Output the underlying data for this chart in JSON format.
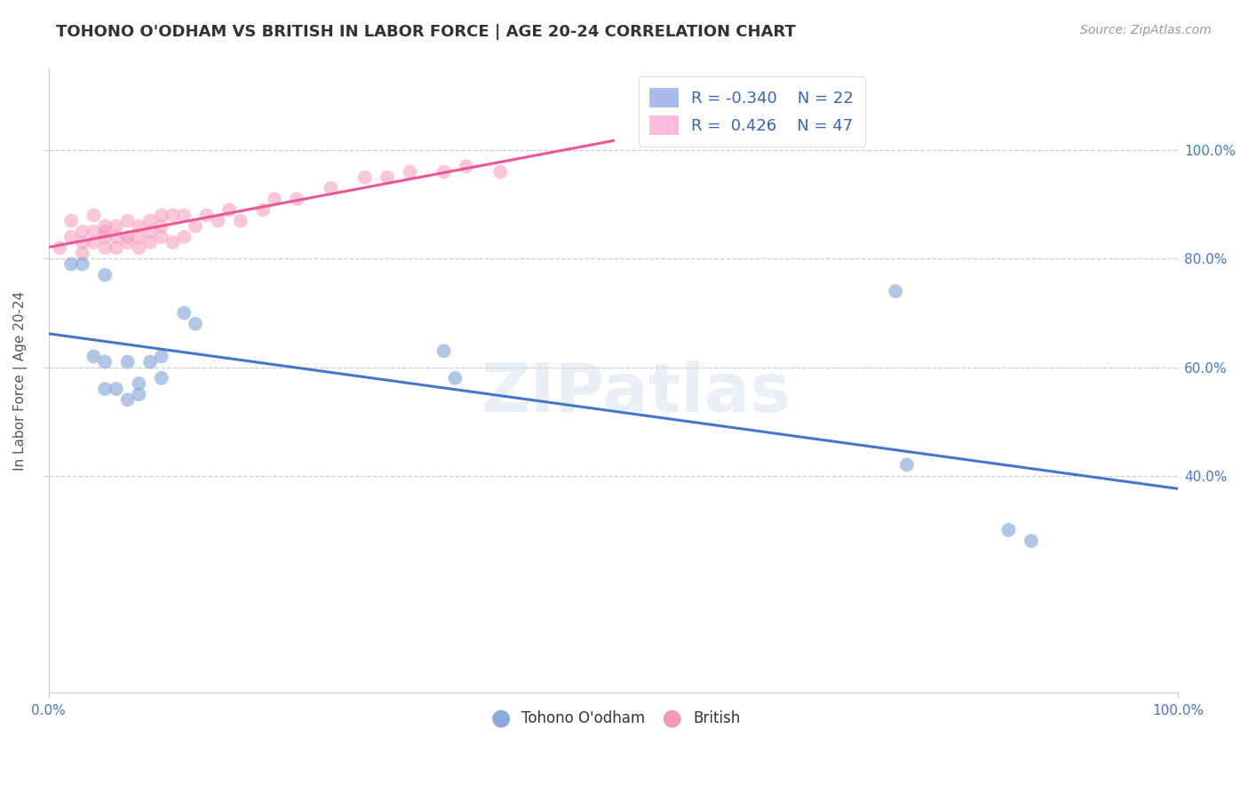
{
  "title": "TOHONO O'ODHAM VS BRITISH IN LABOR FORCE | AGE 20-24 CORRELATION CHART",
  "source": "Source: ZipAtlas.com",
  "ylabel": "In Labor Force | Age 20-24",
  "blue_R": -0.34,
  "blue_N": 22,
  "pink_R": 0.426,
  "pink_N": 47,
  "blue_color": "#88aadd",
  "pink_color": "#f599bb",
  "blue_line_color": "#4477cc",
  "pink_line_color": "#ee5599",
  "legend_label_blue": "Tohono O'odham",
  "legend_label_pink": "British",
  "watermark": "ZIPatlas",
  "blue_scatter_x": [
    0.02,
    0.03,
    0.04,
    0.05,
    0.05,
    0.05,
    0.06,
    0.07,
    0.07,
    0.08,
    0.08,
    0.09,
    0.1,
    0.1,
    0.12,
    0.13,
    0.35,
    0.36,
    0.75,
    0.76,
    0.85,
    0.87
  ],
  "blue_scatter_y": [
    0.79,
    0.79,
    0.62,
    0.61,
    0.56,
    0.77,
    0.56,
    0.54,
    0.61,
    0.55,
    0.57,
    0.61,
    0.58,
    0.62,
    0.7,
    0.68,
    0.63,
    0.58,
    0.74,
    0.42,
    0.3,
    0.28
  ],
  "pink_scatter_x": [
    0.01,
    0.02,
    0.02,
    0.03,
    0.03,
    0.03,
    0.04,
    0.04,
    0.04,
    0.05,
    0.05,
    0.05,
    0.05,
    0.06,
    0.06,
    0.06,
    0.07,
    0.07,
    0.07,
    0.08,
    0.08,
    0.08,
    0.09,
    0.09,
    0.09,
    0.1,
    0.1,
    0.1,
    0.11,
    0.11,
    0.12,
    0.12,
    0.13,
    0.14,
    0.15,
    0.16,
    0.17,
    0.19,
    0.2,
    0.22,
    0.25,
    0.28,
    0.3,
    0.32,
    0.35,
    0.37,
    0.4
  ],
  "pink_scatter_y": [
    0.82,
    0.84,
    0.87,
    0.81,
    0.83,
    0.85,
    0.83,
    0.85,
    0.88,
    0.82,
    0.84,
    0.85,
    0.86,
    0.82,
    0.84,
    0.86,
    0.83,
    0.84,
    0.87,
    0.82,
    0.84,
    0.86,
    0.83,
    0.85,
    0.87,
    0.84,
    0.86,
    0.88,
    0.83,
    0.88,
    0.84,
    0.88,
    0.86,
    0.88,
    0.87,
    0.89,
    0.87,
    0.89,
    0.91,
    0.91,
    0.93,
    0.95,
    0.95,
    0.96,
    0.96,
    0.97,
    0.96
  ],
  "background_color": "#ffffff",
  "grid_color": "#cccccc",
  "xlim": [
    0.0,
    1.0
  ],
  "ylim": [
    0.0,
    1.15
  ],
  "yticks": [
    0.4,
    0.6,
    0.8,
    1.0
  ],
  "ytick_labels": [
    "40.0%",
    "60.0%",
    "80.0%",
    "100.0%"
  ],
  "xticks": [
    0.0,
    1.0
  ],
  "xtick_labels": [
    "0.0%",
    "100.0%"
  ],
  "title_fontsize": 13,
  "axis_label_fontsize": 11,
  "tick_fontsize": 11,
  "legend_fontsize": 13,
  "source_fontsize": 10
}
